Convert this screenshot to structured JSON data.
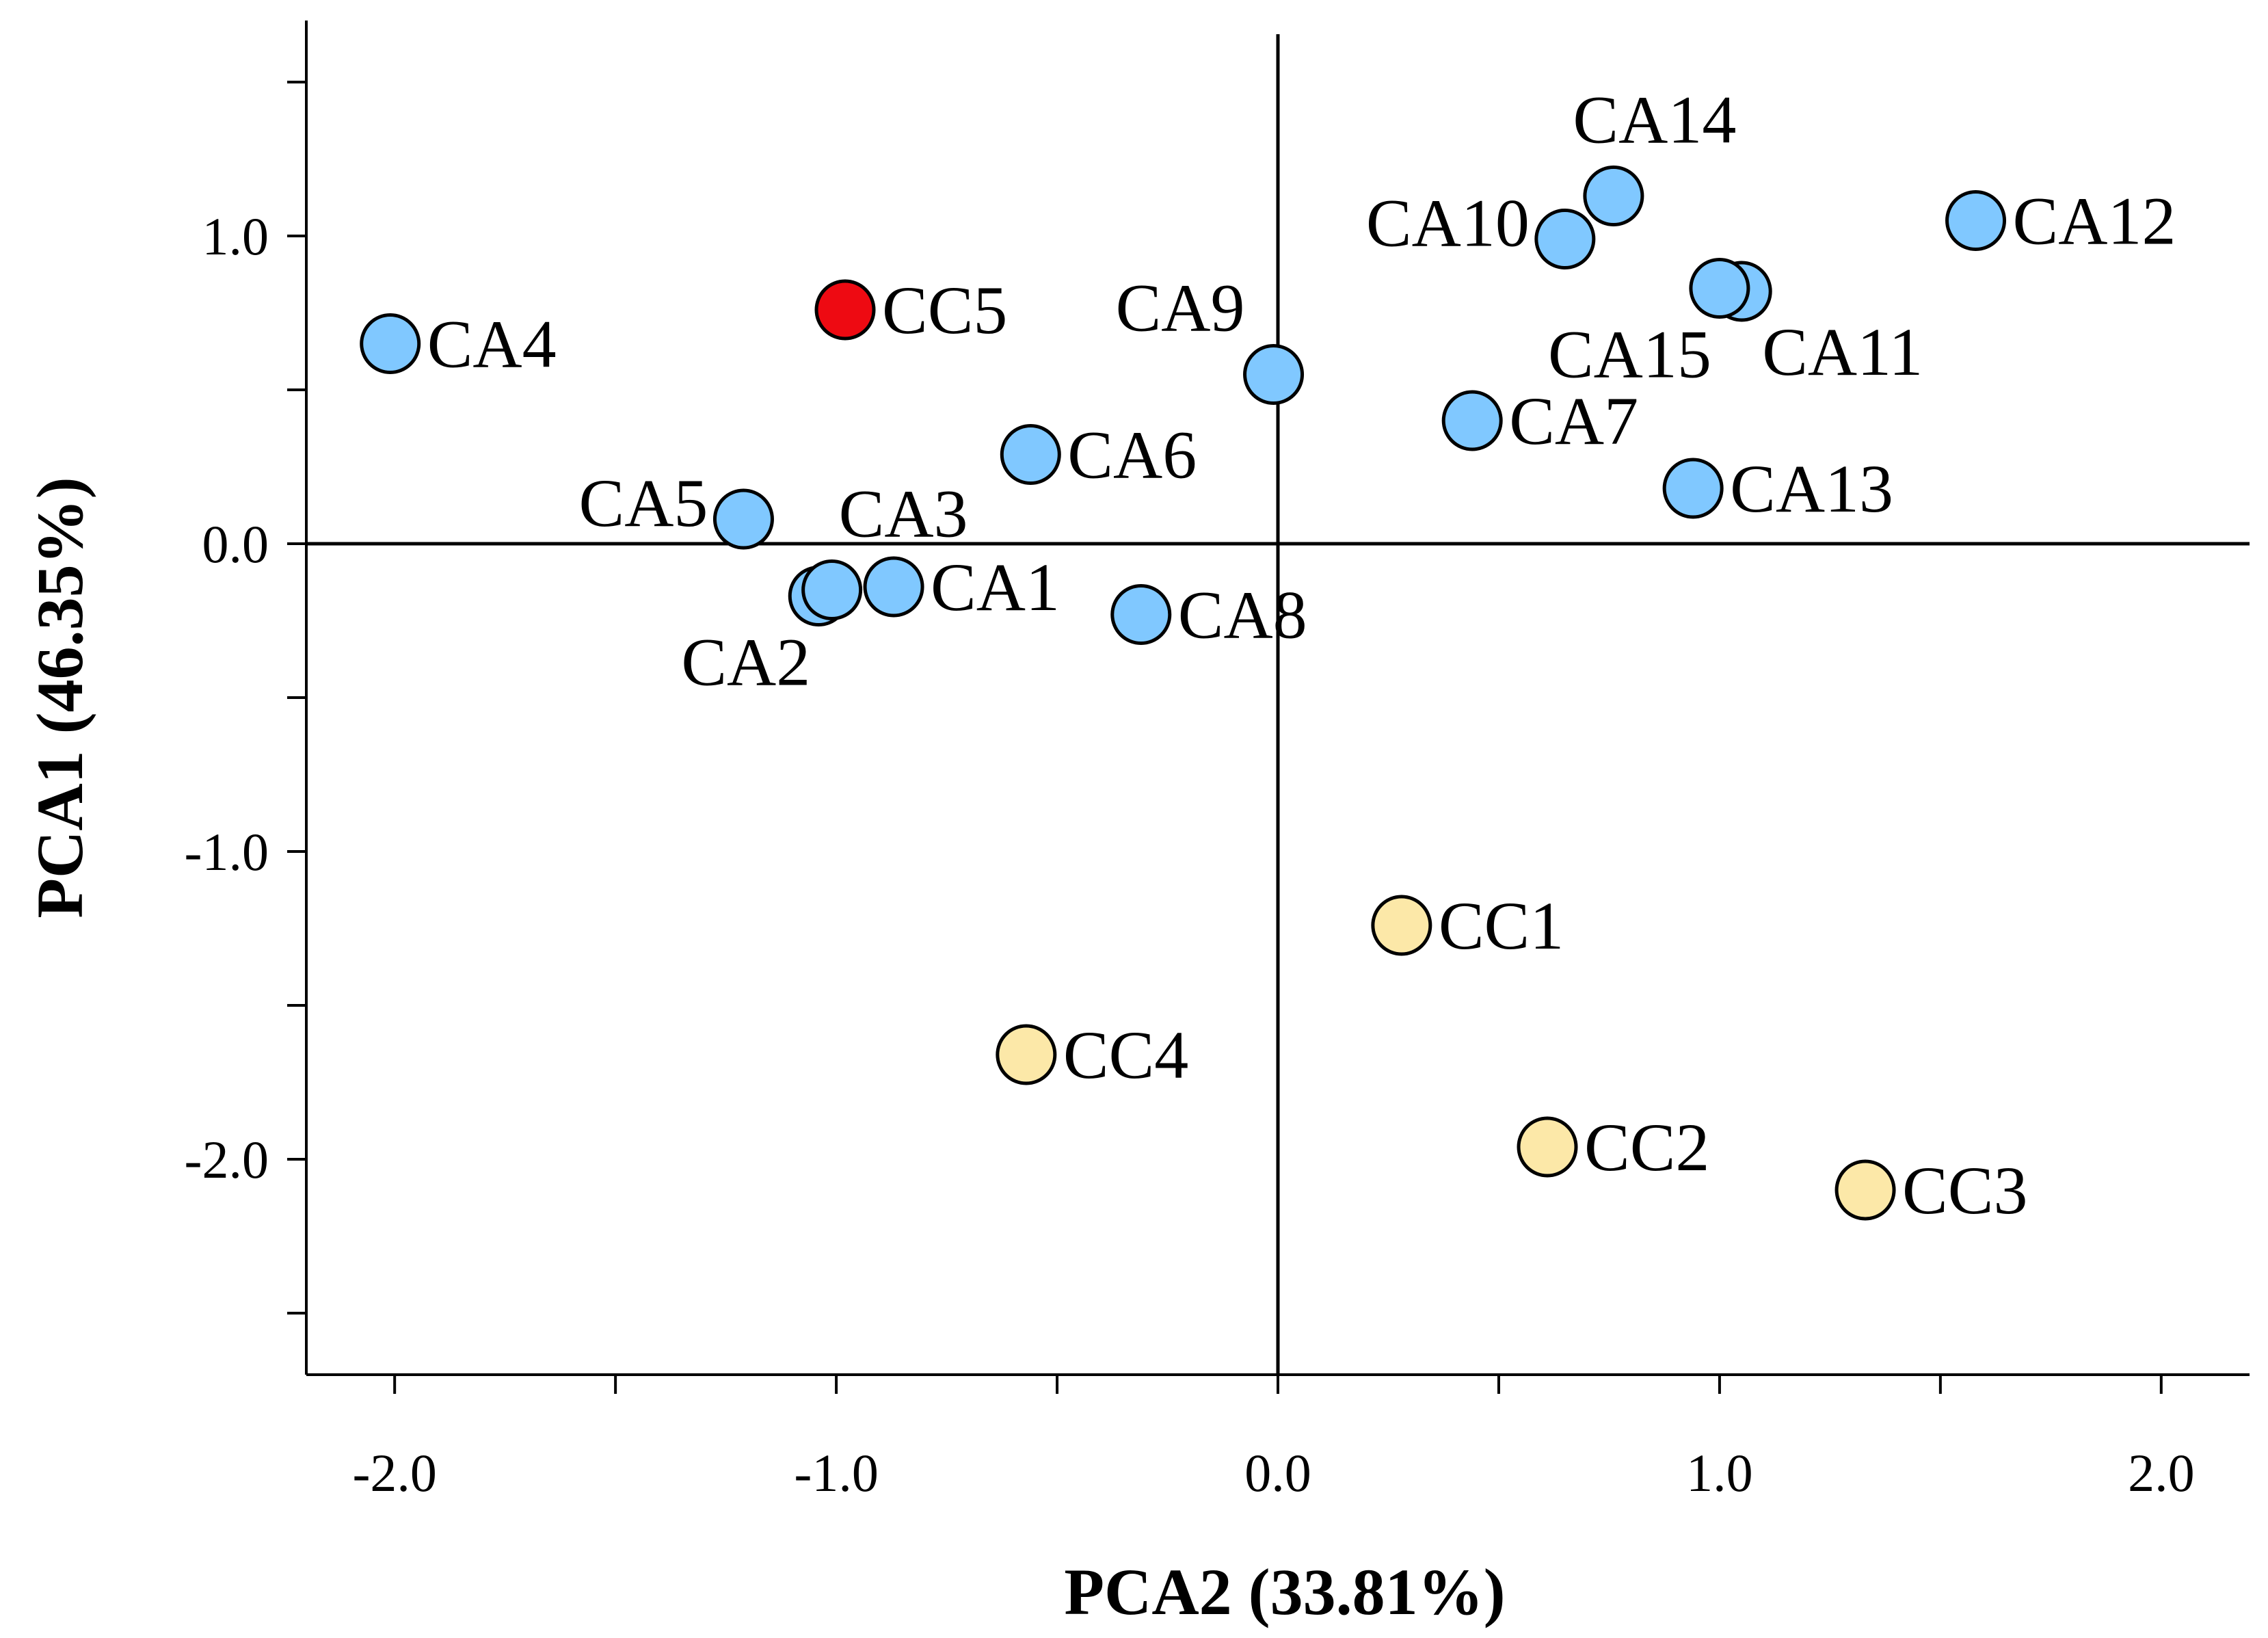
{
  "chart_data": {
    "type": "scatter",
    "title": "",
    "xlabel": "PCA2 (33.81%)",
    "ylabel": "PCA1 (46.35%)",
    "xlim": [
      -2.2,
      2.2
    ],
    "ylim": [
      -2.7,
      1.7
    ],
    "x_ticks": [
      -2.0,
      -1.5,
      -1.0,
      -0.5,
      0.0,
      0.5,
      1.0,
      1.5,
      2.0
    ],
    "x_tick_labels": [
      "-2.0",
      "",
      "-1.0",
      "",
      "0.0",
      "",
      "1.0",
      "",
      "2.0"
    ],
    "y_ticks": [
      -2.5,
      -2.0,
      -1.5,
      -1.0,
      -0.5,
      0.0,
      0.5,
      1.0,
      1.5
    ],
    "y_tick_labels": [
      "",
      "-2.0",
      "",
      "-1.0",
      "",
      "0.0",
      "",
      "1.0",
      ""
    ],
    "reference_lines": {
      "x": 0,
      "y": 0
    },
    "grid": false,
    "colors": {
      "CA": "#80c8ff",
      "CC": "#fce8a8",
      "highlight": "#ee0a12",
      "stroke": "#000000"
    },
    "points": [
      {
        "name": "CA1",
        "x": -0.87,
        "y": -0.14,
        "group": "CA",
        "label_pos": "right"
      },
      {
        "name": "CA2",
        "x": -1.04,
        "y": -0.17,
        "group": "CA",
        "label_pos": "below-left"
      },
      {
        "name": "CA3",
        "x": -1.01,
        "y": -0.15,
        "group": "CA",
        "label_pos": "above-right"
      },
      {
        "name": "CA4",
        "x": -2.01,
        "y": 0.65,
        "group": "CA",
        "label_pos": "right"
      },
      {
        "name": "CA5",
        "x": -1.21,
        "y": 0.08,
        "group": "CA",
        "label_pos": "left"
      },
      {
        "name": "CA6",
        "x": -0.56,
        "y": 0.29,
        "group": "CA",
        "label_pos": "right"
      },
      {
        "name": "CA7",
        "x": 0.44,
        "y": 0.4,
        "group": "CA",
        "label_pos": "right"
      },
      {
        "name": "CA8",
        "x": -0.31,
        "y": -0.23,
        "group": "CA",
        "label_pos": "right"
      },
      {
        "name": "CA9",
        "x": -0.01,
        "y": 0.55,
        "group": "CA",
        "label_pos": "above-left"
      },
      {
        "name": "CA10",
        "x": 0.65,
        "y": 0.99,
        "group": "CA",
        "label_pos": "left"
      },
      {
        "name": "CA11",
        "x": 1.05,
        "y": 0.82,
        "group": "CA",
        "label_pos": "below-right"
      },
      {
        "name": "CA12",
        "x": 1.58,
        "y": 1.05,
        "group": "CA",
        "label_pos": "right"
      },
      {
        "name": "CA13",
        "x": 0.94,
        "y": 0.18,
        "group": "CA",
        "label_pos": "right"
      },
      {
        "name": "CA14",
        "x": 0.76,
        "y": 1.13,
        "group": "CA",
        "label_pos": "above"
      },
      {
        "name": "CA15",
        "x": 1.0,
        "y": 0.83,
        "group": "CA",
        "label_pos": "below-left"
      },
      {
        "name": "CC1",
        "x": 0.28,
        "y": -1.24,
        "group": "CC",
        "label_pos": "right"
      },
      {
        "name": "CC2",
        "x": 0.61,
        "y": -1.96,
        "group": "CC",
        "label_pos": "right"
      },
      {
        "name": "CC3",
        "x": 1.33,
        "y": -2.1,
        "group": "CC",
        "label_pos": "right"
      },
      {
        "name": "CC4",
        "x": -0.57,
        "y": -1.66,
        "group": "CC",
        "label_pos": "right"
      },
      {
        "name": "CC5",
        "x": -0.98,
        "y": 0.76,
        "group": "highlight",
        "label_pos": "right"
      }
    ]
  }
}
